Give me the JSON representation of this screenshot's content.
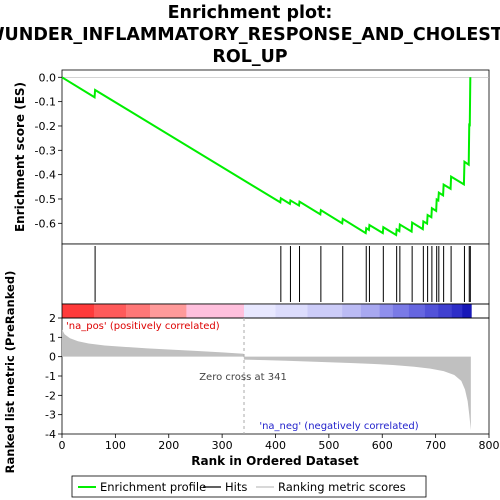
{
  "chart_data": {
    "type": "line",
    "title_lines": [
      "Enrichment plot:",
      "WUNDER_INFLAMMATORY_RESPONSE_AND_CHOLESTE",
      "ROL_UP"
    ],
    "es_ylabel": "Enrichment score (ES)",
    "metric_ylabel": "Ranked list metric (PreRanked)",
    "xlabel": "Rank in Ordered Dataset",
    "xlim": [
      0,
      800
    ],
    "es_ylim": [
      -0.685,
      0.03
    ],
    "metric_ylim": [
      -4,
      2
    ],
    "x_ticks": [
      "0",
      "100",
      "200",
      "300",
      "400",
      "500",
      "600",
      "700",
      "800"
    ],
    "x_tick_values": [
      0,
      100,
      200,
      300,
      400,
      500,
      600,
      700,
      800
    ],
    "es_ticks": [
      "0.0",
      "-0.1",
      "-0.2",
      "-0.3",
      "-0.4",
      "-0.5",
      "-0.6"
    ],
    "es_tick_values": [
      0.0,
      -0.1,
      -0.2,
      -0.3,
      -0.4,
      -0.5,
      -0.6
    ],
    "metric_ticks": [
      "2",
      "1",
      "0",
      "-1",
      "-2",
      "-3",
      "-4"
    ],
    "metric_tick_values": [
      2,
      1,
      0,
      -1,
      -2,
      -3,
      -4
    ],
    "n_genes": 767,
    "zero_cross_rank": 341,
    "hits": [
      62,
      410,
      428,
      445,
      485,
      526,
      570,
      576,
      602,
      627,
      633,
      656,
      677,
      685,
      693,
      702,
      706,
      715,
      729,
      754,
      763,
      765
    ],
    "es_profile": {
      "x": [
        0,
        61,
        62,
        409,
        410,
        427,
        428,
        444,
        445,
        484,
        485,
        525,
        526,
        569,
        570,
        575,
        576,
        601,
        602,
        626,
        627,
        632,
        633,
        655,
        656,
        676,
        677,
        684,
        685,
        692,
        693,
        701,
        702,
        705,
        706,
        714,
        715,
        728,
        729,
        753,
        754,
        762,
        763,
        764,
        765
      ],
      "y": [
        0.0,
        -0.082,
        -0.052,
        -0.514,
        -0.497,
        -0.52,
        -0.506,
        -0.527,
        -0.511,
        -0.563,
        -0.546,
        -0.6,
        -0.582,
        -0.64,
        -0.62,
        -0.627,
        -0.607,
        -0.64,
        -0.616,
        -0.648,
        -0.625,
        -0.632,
        -0.605,
        -0.634,
        -0.597,
        -0.624,
        -0.592,
        -0.601,
        -0.566,
        -0.575,
        -0.538,
        -0.549,
        -0.502,
        -0.506,
        -0.474,
        -0.485,
        -0.441,
        -0.458,
        -0.408,
        -0.44,
        -0.347,
        -0.359,
        -0.195,
        -0.196,
        0.0
      ]
    },
    "ranked_metric": {
      "x": [
        0,
        5,
        15,
        30,
        50,
        80,
        120,
        160,
        200,
        250,
        300,
        340,
        341,
        380,
        420,
        460,
        500,
        540,
        580,
        620,
        660,
        690,
        715,
        735,
        748,
        755,
        760,
        763,
        766
      ],
      "y": [
        1.4,
        1.15,
        0.95,
        0.8,
        0.68,
        0.58,
        0.5,
        0.43,
        0.37,
        0.3,
        0.22,
        0.15,
        -0.15,
        -0.18,
        -0.21,
        -0.25,
        -0.29,
        -0.33,
        -0.37,
        -0.43,
        -0.52,
        -0.62,
        -0.75,
        -0.95,
        -1.25,
        -1.7,
        -2.3,
        -3.0,
        -3.8
      ]
    },
    "region_labels": {
      "pos": "'na_pos' (positively correlated)",
      "neg": "'na_neg' (negatively correlated)",
      "zero_cross": "Zero cross at 341"
    },
    "colors": {
      "profile": "#00ee00",
      "hit": "#000000",
      "metric_fill": "#c0c0c0",
      "pos_text": "#dd0000",
      "neg_text": "#2222cc",
      "zero_line": "#aaaaaa"
    },
    "heat_bar": {
      "x_breaks": [
        0,
        60,
        120,
        165,
        233,
        341,
        400,
        460,
        525,
        560,
        595,
        620,
        650,
        680,
        705,
        730,
        750,
        767
      ],
      "colors": [
        "#ff3a3a",
        "#ff5a5a",
        "#ff7777",
        "#ff9a9a",
        "#ffc0dd",
        "#e8e8ff",
        "#dcdcfc",
        "#ccccf8",
        "#bbbbf4",
        "#a8a8f0",
        "#8f8fec",
        "#7a7ae6",
        "#6666e0",
        "#5252d8",
        "#4040d0",
        "#2e2ec8",
        "#1818b8"
      ]
    },
    "legend": [
      {
        "label": "Enrichment profile",
        "kind": "profile"
      },
      {
        "label": "Hits",
        "kind": "hit"
      },
      {
        "label": "Ranking metric scores",
        "kind": "metric"
      }
    ]
  }
}
